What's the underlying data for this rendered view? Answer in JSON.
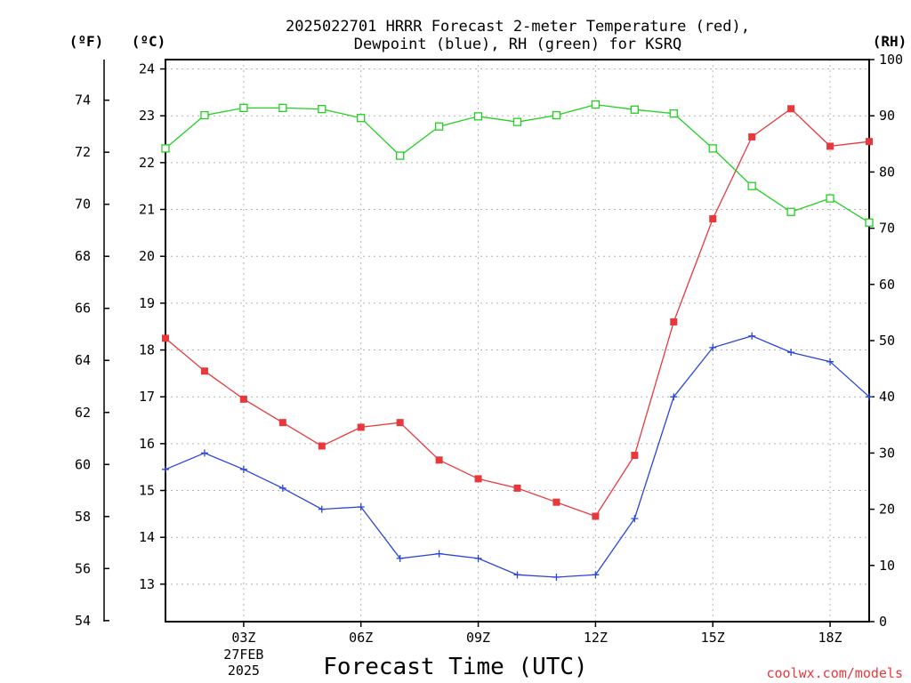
{
  "chart_data": {
    "type": "line",
    "title_lines": [
      "2025022701 HRRR Forecast 2-meter Temperature (red),",
      "Dewpoint (blue), RH (green) for KSRQ"
    ],
    "xlabel": "Forecast Time (UTC)",
    "credit": "coolwx.com/models",
    "units": {
      "left_f": "(ºF)",
      "left_c": "(ºC)",
      "right": "(RH)"
    },
    "x": [
      1,
      2,
      3,
      4,
      5,
      6,
      7,
      8,
      9,
      10,
      11,
      12,
      13,
      14,
      15,
      16,
      17,
      18,
      19
    ],
    "xlim": [
      1,
      19
    ],
    "x_ticks": [
      {
        "x": 3,
        "label": "03Z",
        "sub": [
          "27FEB",
          "2025"
        ]
      },
      {
        "x": 6,
        "label": "06Z"
      },
      {
        "x": 9,
        "label": "09Z"
      },
      {
        "x": 12,
        "label": "12Z"
      },
      {
        "x": 15,
        "label": "15Z"
      },
      {
        "x": 18,
        "label": "18Z"
      }
    ],
    "y_c_ticks": [
      13,
      14,
      15,
      16,
      17,
      18,
      19,
      20,
      21,
      22,
      23,
      24
    ],
    "y_f_ticks": [
      54,
      56,
      58,
      60,
      62,
      64,
      66,
      68,
      70,
      72,
      74
    ],
    "y_rh_ticks": [
      0,
      10,
      20,
      30,
      40,
      50,
      60,
      70,
      80,
      90,
      100
    ],
    "ylim_c": [
      12.2,
      24.2
    ],
    "ylim_rh": [
      0,
      100
    ],
    "grid": true,
    "series": [
      {
        "name": "Temperature",
        "color": "#e8383c",
        "marker": "filled-square",
        "values": [
          18.25,
          17.55,
          16.95,
          16.45,
          15.95,
          16.35,
          16.45,
          15.65,
          15.25,
          15.05,
          14.75,
          14.45,
          15.75,
          18.6,
          20.8,
          22.55,
          23.15,
          22.35,
          22.45
        ]
      },
      {
        "name": "Dewpoint",
        "color": "#2a44d8",
        "marker": "plus",
        "values": [
          15.45,
          15.8,
          15.45,
          15.05,
          14.6,
          14.65,
          13.55,
          13.65,
          13.55,
          13.2,
          13.15,
          13.2,
          14.4,
          17.0,
          18.05,
          18.3,
          17.95,
          17.75,
          17.0
        ]
      },
      {
        "name": "RH",
        "color": "#22d022",
        "marker": "open-square",
        "values": [
          84.2,
          90.1,
          91.4,
          91.4,
          91.2,
          89.6,
          82.9,
          88.1,
          89.9,
          88.9,
          90.1,
          92.0,
          91.1,
          90.4,
          84.2,
          77.5,
          72.9,
          75.3,
          71.0
        ]
      }
    ]
  }
}
